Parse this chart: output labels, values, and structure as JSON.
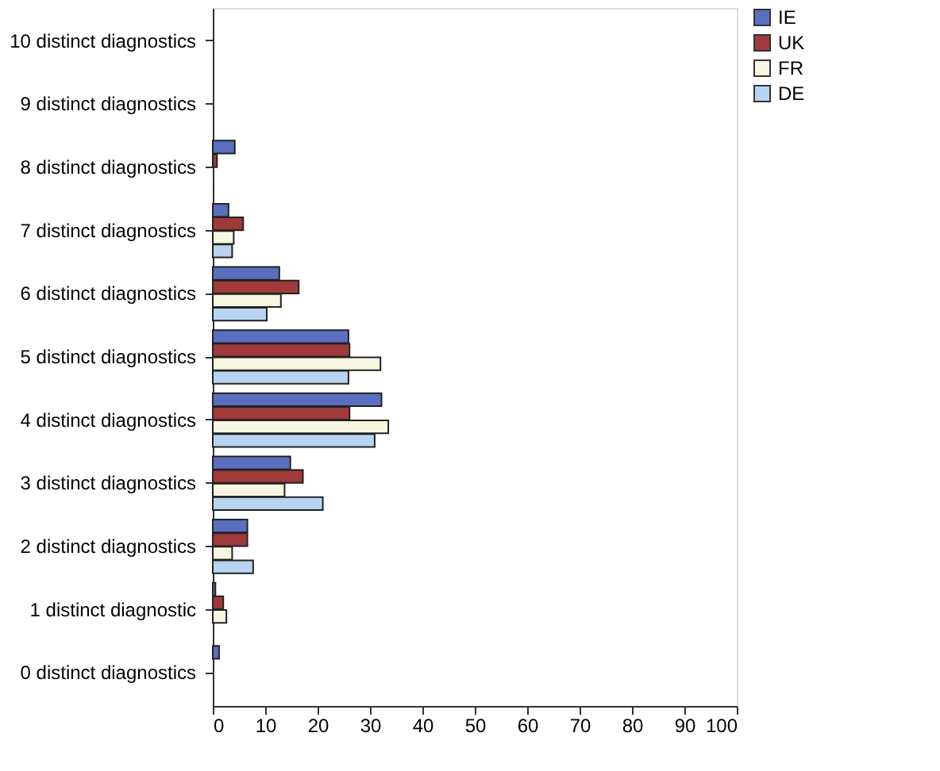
{
  "chart_data": {
    "type": "bar",
    "orientation": "horizontal",
    "categories": [
      "10 distinct diagnostics",
      "9 distinct diagnostics",
      "8 distinct diagnostics",
      "7 distinct diagnostics",
      "6 distinct diagnostics",
      "5 distinct diagnostics",
      "4 distinct diagnostics",
      "3 distinct diagnostics",
      "2 distinct diagnostics",
      "1 distinct diagnostic",
      "0 distinct diagnostics"
    ],
    "series": [
      {
        "name": "IE",
        "color": "#5a6fc0",
        "values": [
          0,
          0,
          4.2,
          3,
          12.7,
          25.9,
          32.2,
          14.8,
          6.6,
          0.5,
          1.2
        ]
      },
      {
        "name": "UK",
        "color": "#a03a3a",
        "values": [
          0,
          0,
          0.8,
          5.8,
          16.4,
          26.1,
          26.1,
          17.2,
          6.6,
          2,
          0
        ]
      },
      {
        "name": "FR",
        "color": "#f7f7e1",
        "values": [
          0,
          0,
          0,
          4,
          13,
          32,
          33.5,
          13.7,
          3.7,
          2.6,
          0
        ]
      },
      {
        "name": "DE",
        "color": "#b8d4f0",
        "values": [
          0,
          0,
          0,
          3.7,
          10.3,
          25.9,
          30.9,
          21,
          7.7,
          0,
          0
        ]
      }
    ],
    "xlim": [
      0,
      100
    ],
    "xticks": [
      0,
      10,
      20,
      30,
      40,
      50,
      60,
      70,
      80,
      90,
      100
    ],
    "grid": false,
    "legend": "top right"
  }
}
